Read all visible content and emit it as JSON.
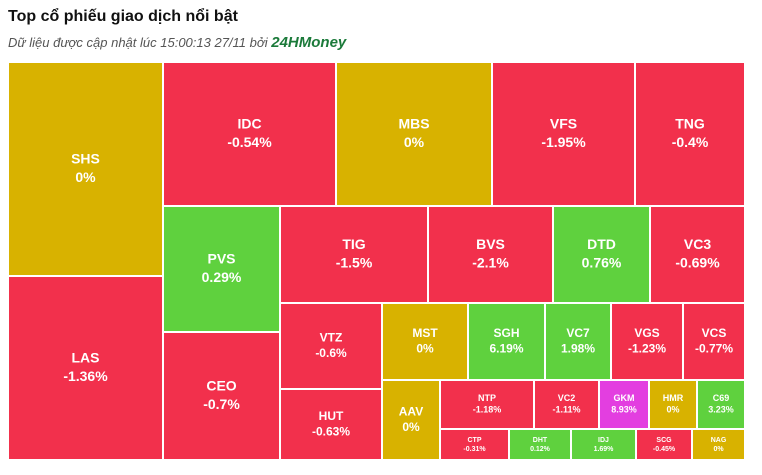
{
  "chart_data": {
    "type": "treemap",
    "title": "Top cổ phiếu giao dịch nổi bật",
    "subtitle": "Dữ liệu được cập nhật lúc 15:00:13 27/11 bởi",
    "source": "24HMoney",
    "categories": [
      "SHS",
      "LAS",
      "IDC",
      "MBS",
      "VFS",
      "TNG",
      "PVS",
      "CEO",
      "TIG",
      "BVS",
      "DTD",
      "VC3",
      "VTZ",
      "HUT",
      "MST",
      "SGH",
      "VC7",
      "VGS",
      "VCS",
      "AAV",
      "NTP",
      "VC2",
      "GKM",
      "HMR",
      "C69",
      "CTP",
      "DHT",
      "IDJ",
      "SCG",
      "NAG"
    ],
    "values": [
      0,
      -1.36,
      -0.54,
      0,
      -1.95,
      -0.4,
      0.29,
      -0.7,
      -1.5,
      -2.1,
      0.76,
      -0.69,
      -0.6,
      -0.63,
      0,
      6.19,
      1.98,
      -1.23,
      -0.77,
      0,
      -1.18,
      -1.11,
      8.93,
      0,
      3.23,
      -0.31,
      0.12,
      1.69,
      -0.45,
      0
    ],
    "value_labels": [
      "0%",
      "-1.36%",
      "-0.54%",
      "0%",
      "-1.95%",
      "-0.4%",
      "0.29%",
      "-0.7%",
      "-1.5%",
      "-2.1%",
      "0.76%",
      "-0.69%",
      "-0.6%",
      "-0.63%",
      "0%",
      "6.19%",
      "1.98%",
      "-1.23%",
      "-0.77%",
      "0%",
      "-1.18%",
      "-1.11%",
      "8.93%",
      "0%",
      "3.23%",
      "-0.31%",
      "0.12%",
      "1.69%",
      "-0.45%",
      "0%"
    ],
    "colors": {
      "up": "#5fd13e",
      "down": "#f2304c",
      "flat": "#d8b200",
      "ceiling": "#e33ee0"
    },
    "ceiling": [
      "GKM"
    ]
  }
}
